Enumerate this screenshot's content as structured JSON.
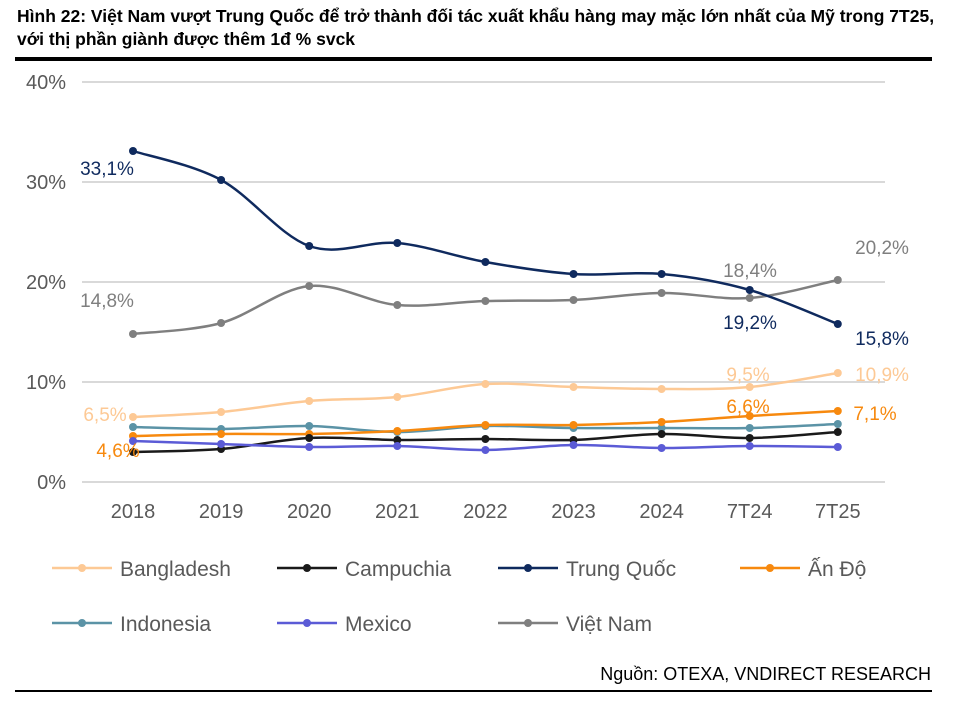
{
  "title": "Hình 22: Việt Nam vượt Trung Quốc để trở thành đối tác xuất khẩu hàng may mặc lớn nhất của Mỹ trong 7T25, với thị phần giành được thêm 1đ % svck",
  "source": "Nguồn: OTEXA, VNDIRECT RESEARCH",
  "chart_data": {
    "type": "line",
    "title": "",
    "xlabel": "",
    "ylabel": "",
    "ylim": [
      0,
      40
    ],
    "yticks": [
      "0%",
      "10%",
      "20%",
      "30%",
      "40%"
    ],
    "grid": true,
    "legend_position": "bottom",
    "categories": [
      "2018",
      "2019",
      "2020",
      "2021",
      "2022",
      "2023",
      "2024",
      "7T24",
      "7T25"
    ],
    "series": [
      {
        "name": "Bangladesh",
        "color": "#FDC995",
        "values": [
          6.5,
          7.0,
          8.1,
          8.5,
          9.8,
          9.5,
          9.3,
          9.5,
          10.9
        ]
      },
      {
        "name": "Campuchia",
        "color": "#1A1A1A",
        "values": [
          3.0,
          3.3,
          4.4,
          4.2,
          4.3,
          4.2,
          4.8,
          4.4,
          5.0
        ]
      },
      {
        "name": "Trung Quốc",
        "color": "#0F2A5E",
        "values": [
          33.1,
          30.2,
          23.6,
          23.9,
          22.0,
          20.8,
          20.8,
          19.2,
          15.8
        ]
      },
      {
        "name": "Ấn Độ",
        "color": "#F7890E",
        "values": [
          4.6,
          4.8,
          4.8,
          5.1,
          5.7,
          5.7,
          6.0,
          6.6,
          7.1
        ]
      },
      {
        "name": "Indonesia",
        "color": "#5B93A6",
        "values": [
          5.5,
          5.3,
          5.6,
          5.0,
          5.6,
          5.4,
          5.4,
          5.4,
          5.8
        ]
      },
      {
        "name": "Mexico",
        "color": "#5B5BD6",
        "values": [
          4.1,
          3.8,
          3.5,
          3.6,
          3.2,
          3.7,
          3.4,
          3.6,
          3.5
        ]
      },
      {
        "name": "Việt Nam",
        "color": "#7F7F7F",
        "values": [
          14.8,
          15.9,
          19.6,
          17.7,
          18.1,
          18.2,
          18.9,
          18.4,
          20.2
        ]
      }
    ],
    "data_labels": [
      {
        "series": "Trung Quốc",
        "category": "2018",
        "text": "33,1%"
      },
      {
        "series": "Việt Nam",
        "category": "2018",
        "text": "14,8%"
      },
      {
        "series": "Bangladesh",
        "category": "2018",
        "text": "6,5%"
      },
      {
        "series": "Ấn Độ",
        "category": "2018",
        "text": "4,6%"
      },
      {
        "series": "Việt Nam",
        "category": "7T24",
        "text": "18,4%"
      },
      {
        "series": "Trung Quốc",
        "category": "7T24",
        "text": "19,2%"
      },
      {
        "series": "Bangladesh",
        "category": "7T24",
        "text": "9,5%"
      },
      {
        "series": "Ấn Độ",
        "category": "7T24",
        "text": "6,6%"
      },
      {
        "series": "Việt Nam",
        "category": "7T25",
        "text": "20,2%"
      },
      {
        "series": "Trung Quốc",
        "category": "7T25",
        "text": "15,8%"
      },
      {
        "series": "Bangladesh",
        "category": "7T25",
        "text": "10,9%"
      },
      {
        "series": "Ấn Độ",
        "category": "7T25",
        "text": "7,1%"
      }
    ]
  }
}
